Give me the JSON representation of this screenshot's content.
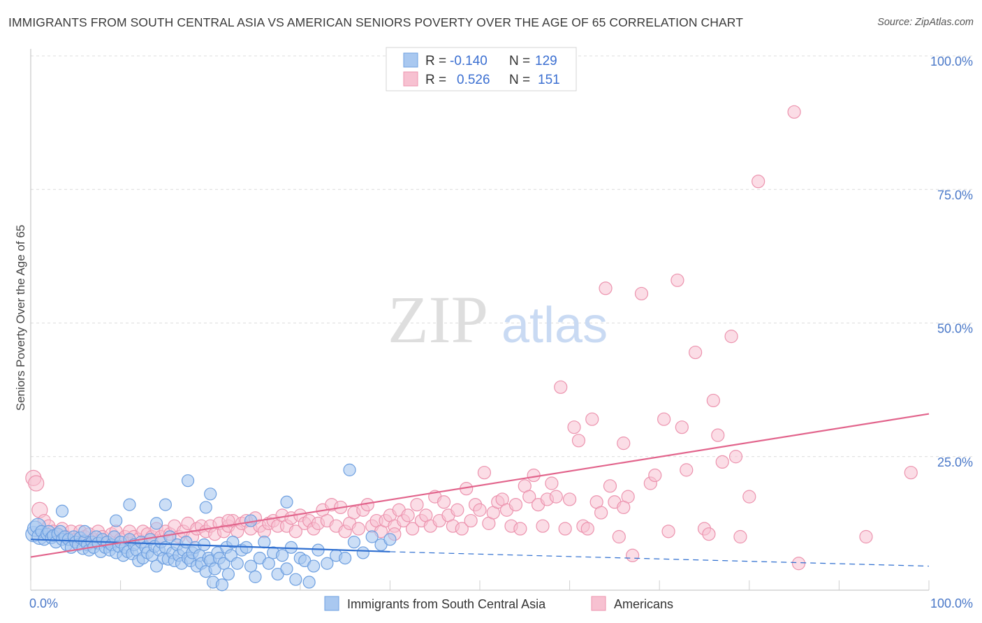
{
  "title": "IMMIGRANTS FROM SOUTH CENTRAL ASIA VS AMERICAN SENIORS POVERTY OVER THE AGE OF 65 CORRELATION CHART",
  "source": "Source: ZipAtlas.com",
  "watermark": {
    "zip": "ZIP",
    "atlas": "atlas"
  },
  "colors": {
    "blue_fill": "#a9c8f0",
    "blue_stroke": "#6d9fe0",
    "blue_line": "#2f6fd0",
    "pink_fill": "#f7c1d1",
    "pink_stroke": "#ec93ae",
    "pink_line": "#e2648c",
    "tick": "#4a78c8",
    "grid": "#d9d9d9"
  },
  "legend": {
    "rows": [
      {
        "r_label": "R =",
        "r_value": "-0.140",
        "n_label": "N =",
        "n_value": "129",
        "series": "blue"
      },
      {
        "r_label": "R =",
        "r_value": "0.526",
        "n_label": "N =",
        "n_value": "151",
        "series": "pink"
      }
    ]
  },
  "chart_data": {
    "type": "scatter",
    "title": "IMMIGRANTS FROM SOUTH CENTRAL ASIA VS AMERICAN SENIORS POVERTY OVER THE AGE OF 65 CORRELATION CHART",
    "xlabel": "",
    "ylabel": "Seniors Poverty Over the Age of 65",
    "xlim": [
      0,
      100
    ],
    "ylim": [
      0,
      100
    ],
    "x_tick_labels": [
      "0.0%",
      "100.0%"
    ],
    "y_tick_labels": [
      "25.0%",
      "50.0%",
      "75.0%",
      "100.0%"
    ],
    "y_ticks": [
      25,
      50,
      75,
      100
    ],
    "grid": true,
    "legend_position": "top-center",
    "series": [
      {
        "name": "Immigrants from South Central Asia",
        "color": "#a9c8f0",
        "trend": {
          "x0": 0,
          "y0": 9.5,
          "x1": 40,
          "y1": 7.2,
          "dash_to_x": 100,
          "dash_to_y": 4.5
        },
        "points": [
          [
            0.3,
            10.5
          ],
          [
            0.5,
            11.5
          ],
          [
            0.8,
            12
          ],
          [
            1,
            10
          ],
          [
            1.2,
            11
          ],
          [
            1.5,
            9.5
          ],
          [
            1.8,
            10.5
          ],
          [
            2,
            11
          ],
          [
            2.3,
            9.8
          ],
          [
            2.5,
            10.2
          ],
          [
            2.8,
            9
          ],
          [
            3,
            10.5
          ],
          [
            3.3,
            11
          ],
          [
            3.5,
            9.5
          ],
          [
            3.8,
            10
          ],
          [
            4,
            8.5
          ],
          [
            4.2,
            9.5
          ],
          [
            4.5,
            8
          ],
          [
            4.8,
            10
          ],
          [
            5,
            9
          ],
          [
            5.3,
            8.5
          ],
          [
            5.5,
            9.8
          ],
          [
            5.8,
            7.8
          ],
          [
            6,
            9.2
          ],
          [
            6.3,
            8.5
          ],
          [
            6.5,
            7.5
          ],
          [
            6.8,
            9
          ],
          [
            7,
            8
          ],
          [
            7.3,
            10
          ],
          [
            7.5,
            8.8
          ],
          [
            7.8,
            7.2
          ],
          [
            8,
            9.5
          ],
          [
            8.3,
            8
          ],
          [
            8.5,
            9
          ],
          [
            8.8,
            7.5
          ],
          [
            9,
            8.5
          ],
          [
            9.3,
            10
          ],
          [
            9.5,
            7
          ],
          [
            9.8,
            8.2
          ],
          [
            10,
            9
          ],
          [
            10.3,
            6.5
          ],
          [
            10.5,
            8
          ],
          [
            10.8,
            7.2
          ],
          [
            11,
            9.5
          ],
          [
            11.3,
            6.8
          ],
          [
            11.5,
            8.5
          ],
          [
            11.8,
            7.5
          ],
          [
            12,
            5.5
          ],
          [
            12.3,
            9
          ],
          [
            12.5,
            6
          ],
          [
            12.8,
            8
          ],
          [
            13,
            7
          ],
          [
            13.3,
            9.5
          ],
          [
            13.5,
            6.5
          ],
          [
            13.8,
            8.2
          ],
          [
            14,
            4.5
          ],
          [
            14.3,
            7.5
          ],
          [
            14.5,
            9
          ],
          [
            14.8,
            6
          ],
          [
            15,
            8
          ],
          [
            15.3,
            5.8
          ],
          [
            15.5,
            10
          ],
          [
            15.8,
            7
          ],
          [
            16,
            5.5
          ],
          [
            16.3,
            8.5
          ],
          [
            16.5,
            6.5
          ],
          [
            16.8,
            5
          ],
          [
            17,
            7.5
          ],
          [
            17.3,
            9
          ],
          [
            17.5,
            6
          ],
          [
            17.8,
            5.5
          ],
          [
            18,
            7
          ],
          [
            18.3,
            8
          ],
          [
            18.5,
            4.5
          ],
          [
            18.8,
            6.5
          ],
          [
            19,
            5
          ],
          [
            19.3,
            8.5
          ],
          [
            19.5,
            3.5
          ],
          [
            19.8,
            6
          ],
          [
            20,
            5.5
          ],
          [
            20.3,
            1.5
          ],
          [
            20.5,
            4
          ],
          [
            20.8,
            7
          ],
          [
            21,
            6
          ],
          [
            21.3,
            1
          ],
          [
            21.5,
            5
          ],
          [
            21.8,
            8
          ],
          [
            22,
            3
          ],
          [
            22.3,
            6.5
          ],
          [
            22.5,
            9
          ],
          [
            23,
            5
          ],
          [
            23.5,
            7.5
          ],
          [
            24,
            8
          ],
          [
            24.5,
            4.5
          ],
          [
            25,
            2.5
          ],
          [
            25.5,
            6
          ],
          [
            26,
            9
          ],
          [
            26.5,
            5
          ],
          [
            27,
            7
          ],
          [
            27.5,
            3
          ],
          [
            28,
            6.5
          ],
          [
            28.5,
            4
          ],
          [
            29,
            8
          ],
          [
            29.5,
            2
          ],
          [
            30,
            6
          ],
          [
            30.5,
            5.5
          ],
          [
            31,
            1.5
          ],
          [
            31.5,
            4.5
          ],
          [
            32,
            7.5
          ],
          [
            33,
            5
          ],
          [
            34,
            6.5
          ],
          [
            35,
            6
          ],
          [
            36,
            9
          ],
          [
            37,
            7
          ],
          [
            38,
            10
          ],
          [
            39,
            8.5
          ],
          [
            40,
            9.5
          ],
          [
            35.5,
            22.5
          ],
          [
            17.5,
            20.5
          ],
          [
            20,
            18
          ],
          [
            11,
            16
          ],
          [
            15,
            16
          ],
          [
            19.5,
            15.5
          ],
          [
            9.5,
            13
          ],
          [
            14,
            12.5
          ],
          [
            24.5,
            13
          ],
          [
            28.5,
            16.5
          ],
          [
            6,
            11
          ],
          [
            3.5,
            14.8
          ]
        ]
      },
      {
        "name": "Americans",
        "color": "#f7c1d1",
        "trend": {
          "x0": 0,
          "y0": 6.2,
          "x1": 100,
          "y1": 33
        },
        "points": [
          [
            0.3,
            21
          ],
          [
            0.6,
            20
          ],
          [
            1,
            15
          ],
          [
            1.5,
            13
          ],
          [
            2,
            12
          ],
          [
            2.5,
            11
          ],
          [
            3,
            10.5
          ],
          [
            3.5,
            11.5
          ],
          [
            4,
            10
          ],
          [
            4.5,
            11
          ],
          [
            5,
            9.5
          ],
          [
            5.5,
            11
          ],
          [
            6,
            10
          ],
          [
            6.5,
            10.5
          ],
          [
            7,
            9.5
          ],
          [
            7.5,
            11
          ],
          [
            8,
            10
          ],
          [
            8.5,
            9
          ],
          [
            9,
            10.5
          ],
          [
            9.5,
            11
          ],
          [
            10,
            9.5
          ],
          [
            10.5,
            10
          ],
          [
            11,
            11
          ],
          [
            11.5,
            10
          ],
          [
            12,
            9.5
          ],
          [
            12.5,
            11
          ],
          [
            13,
            10.5
          ],
          [
            13.5,
            10
          ],
          [
            14,
            11.5
          ],
          [
            14.5,
            10
          ],
          [
            15,
            11
          ],
          [
            15.5,
            10.5
          ],
          [
            16,
            12
          ],
          [
            16.5,
            10
          ],
          [
            17,
            11
          ],
          [
            17.5,
            12.5
          ],
          [
            18,
            10
          ],
          [
            18.5,
            11.5
          ],
          [
            19,
            12
          ],
          [
            19.5,
            11
          ],
          [
            20,
            12
          ],
          [
            20.5,
            10.5
          ],
          [
            21,
            12.5
          ],
          [
            21.5,
            11
          ],
          [
            22,
            12
          ],
          [
            22.5,
            13
          ],
          [
            23,
            11
          ],
          [
            23.5,
            12.5
          ],
          [
            24,
            13
          ],
          [
            24.5,
            11.5
          ],
          [
            25,
            13.5
          ],
          [
            25.5,
            12
          ],
          [
            26,
            11
          ],
          [
            26.5,
            12.5
          ],
          [
            27,
            13
          ],
          [
            27.5,
            12
          ],
          [
            28,
            14
          ],
          [
            28.5,
            12
          ],
          [
            29,
            13.5
          ],
          [
            29.5,
            11
          ],
          [
            30,
            14
          ],
          [
            30.5,
            12.5
          ],
          [
            31,
            13
          ],
          [
            31.5,
            11.5
          ],
          [
            32,
            12.5
          ],
          [
            32.5,
            15
          ],
          [
            33,
            13
          ],
          [
            33.5,
            16
          ],
          [
            34,
            12
          ],
          [
            34.5,
            15.5
          ],
          [
            35,
            11
          ],
          [
            35.5,
            12.5
          ],
          [
            36,
            14.5
          ],
          [
            36.5,
            11.5
          ],
          [
            37,
            15
          ],
          [
            37.5,
            16
          ],
          [
            38,
            12
          ],
          [
            38.5,
            13
          ],
          [
            39,
            11
          ],
          [
            39.5,
            13
          ],
          [
            40,
            14
          ],
          [
            40.5,
            12
          ],
          [
            41,
            15
          ],
          [
            41.5,
            13
          ],
          [
            42,
            14
          ],
          [
            42.5,
            11.5
          ],
          [
            43,
            16
          ],
          [
            43.5,
            13
          ],
          [
            44,
            14
          ],
          [
            44.5,
            12
          ],
          [
            45,
            17.5
          ],
          [
            45.5,
            13
          ],
          [
            46,
            16.5
          ],
          [
            46.5,
            14
          ],
          [
            47,
            12
          ],
          [
            47.5,
            15
          ],
          [
            48,
            11.5
          ],
          [
            48.5,
            19
          ],
          [
            49,
            13
          ],
          [
            49.5,
            16
          ],
          [
            50,
            15
          ],
          [
            50.5,
            22
          ],
          [
            51,
            12.5
          ],
          [
            51.5,
            14.5
          ],
          [
            52,
            16.5
          ],
          [
            52.5,
            17
          ],
          [
            53,
            15
          ],
          [
            53.5,
            12
          ],
          [
            54,
            16
          ],
          [
            54.5,
            11.5
          ],
          [
            55,
            19.5
          ],
          [
            55.5,
            17.5
          ],
          [
            56,
            21.5
          ],
          [
            56.5,
            16
          ],
          [
            57,
            12
          ],
          [
            57.5,
            17
          ],
          [
            58,
            20
          ],
          [
            58.5,
            17.5
          ],
          [
            59,
            38
          ],
          [
            59.5,
            11.5
          ],
          [
            60,
            17
          ],
          [
            60.5,
            30.5
          ],
          [
            61,
            28
          ],
          [
            61.5,
            12
          ],
          [
            62,
            11.5
          ],
          [
            62.5,
            32
          ],
          [
            63,
            16.5
          ],
          [
            63.5,
            14.5
          ],
          [
            64,
            56.5
          ],
          [
            64.5,
            19.5
          ],
          [
            65,
            16.5
          ],
          [
            65.5,
            10
          ],
          [
            66,
            27.5
          ],
          [
            66.5,
            17.5
          ],
          [
            67,
            6.5
          ],
          [
            68,
            55.5
          ],
          [
            69,
            20
          ],
          [
            69.5,
            21.5
          ],
          [
            70.5,
            32
          ],
          [
            71,
            11
          ],
          [
            72,
            58
          ],
          [
            72.5,
            30.5
          ],
          [
            73,
            22.5
          ],
          [
            74,
            44.5
          ],
          [
            75,
            11.5
          ],
          [
            75.5,
            10.5
          ],
          [
            76,
            35.5
          ],
          [
            76.5,
            29
          ],
          [
            77,
            24
          ],
          [
            78,
            47.5
          ],
          [
            78.5,
            25
          ],
          [
            79,
            10
          ],
          [
            80,
            17.5
          ],
          [
            81,
            76.5
          ],
          [
            85,
            89.5
          ],
          [
            85.5,
            5
          ],
          [
            98,
            22
          ],
          [
            93,
            10
          ],
          [
            66,
            15.5
          ],
          [
            40.5,
            10.5
          ],
          [
            22,
            13
          ]
        ]
      }
    ]
  },
  "bottom_legend": {
    "items": [
      {
        "label": "Immigrants from South Central Asia",
        "series": "blue"
      },
      {
        "label": "Americans",
        "series": "pink"
      }
    ]
  }
}
